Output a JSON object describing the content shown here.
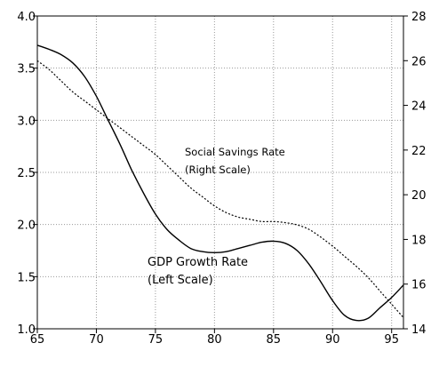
{
  "chart_data": {
    "type": "line",
    "title": "",
    "xlim": [
      65,
      96
    ],
    "x_ticks": [
      "65",
      "70",
      "75",
      "80",
      "85",
      "90",
      "95"
    ],
    "left_axis": {
      "ylim": [
        1.0,
        4.0
      ],
      "ticks": [
        "1.0",
        "1.5",
        "2.0",
        "2.5",
        "3.0",
        "3.5",
        "4.0"
      ]
    },
    "right_axis": {
      "ylim": [
        14,
        28
      ],
      "ticks": [
        "14",
        "16",
        "18",
        "20",
        "22",
        "24",
        "26",
        "28"
      ]
    },
    "grid": true,
    "series": [
      {
        "name": "GDP Growth Rate",
        "axis": "left",
        "style": "solid",
        "color": "#000000",
        "x": [
          65,
          66,
          67,
          68,
          69,
          70,
          71,
          72,
          73,
          74,
          75,
          76,
          77,
          78,
          79,
          80,
          81,
          82,
          83,
          84,
          85,
          86,
          87,
          88,
          89,
          90,
          91,
          92,
          93,
          94,
          95,
          96
        ],
        "values": [
          3.72,
          3.68,
          3.63,
          3.55,
          3.42,
          3.23,
          3.0,
          2.77,
          2.52,
          2.3,
          2.1,
          1.95,
          1.85,
          1.77,
          1.74,
          1.73,
          1.74,
          1.77,
          1.8,
          1.83,
          1.84,
          1.82,
          1.75,
          1.62,
          1.45,
          1.27,
          1.13,
          1.08,
          1.1,
          1.2,
          1.3,
          1.42
        ]
      },
      {
        "name": "Social Savings Rate",
        "axis": "right",
        "style": "dotted",
        "color": "#000000",
        "x": [
          65,
          66,
          67,
          68,
          69,
          70,
          71,
          72,
          73,
          74,
          75,
          76,
          77,
          78,
          79,
          80,
          81,
          82,
          83,
          84,
          85,
          86,
          87,
          88,
          89,
          90,
          91,
          92,
          93,
          94,
          95,
          96
        ],
        "values": [
          26.0,
          25.6,
          25.1,
          24.6,
          24.2,
          23.8,
          23.4,
          23.0,
          22.6,
          22.2,
          21.8,
          21.3,
          20.8,
          20.3,
          19.9,
          19.5,
          19.2,
          19.0,
          18.9,
          18.8,
          18.8,
          18.75,
          18.65,
          18.45,
          18.1,
          17.7,
          17.25,
          16.8,
          16.3,
          15.7,
          15.1,
          14.5
        ]
      }
    ],
    "annotations": [
      {
        "line1": "Social Savings Rate",
        "line2": "(Right Scale)"
      },
      {
        "line1": "GDP Growth Rate",
        "line2": "(Left Scale)"
      }
    ]
  }
}
